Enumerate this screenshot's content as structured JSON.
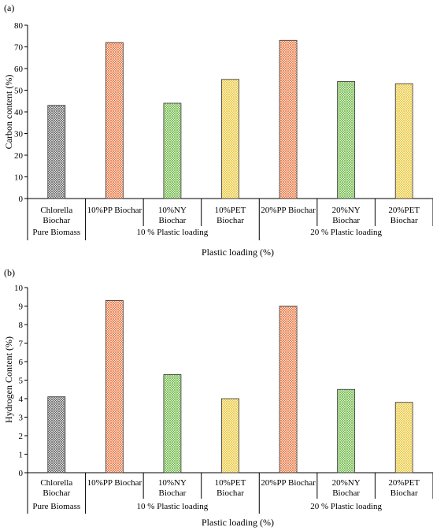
{
  "panels": [
    {
      "panel_label": "(a)",
      "ylabel": "Carbon content (%)",
      "xlabel": "Plastic loading (%)"
    },
    {
      "panel_label": "(b)",
      "ylabel": "Hydrogen Content (%)",
      "xlabel": "Plastic loading (%)"
    }
  ],
  "chart_data": [
    {
      "type": "bar",
      "title": "",
      "xlabel": "Plastic loading (%)",
      "ylabel": "Carbon content (%)",
      "ylim": [
        0,
        80
      ],
      "yticks": [
        0,
        10,
        20,
        30,
        40,
        50,
        60,
        70,
        80
      ],
      "categories": [
        [
          "Chlorella",
          "Biochar"
        ],
        [
          "10%PP Biochar"
        ],
        [
          "10%NY",
          "Biochar"
        ],
        [
          "10%PET",
          "Biochar"
        ],
        [
          "20%PP Biochar"
        ],
        [
          "20%NY",
          "Biochar"
        ],
        [
          "20%PET",
          "Biochar"
        ]
      ],
      "values": [
        43,
        72,
        44,
        55,
        73,
        54,
        53
      ],
      "bar_colors": [
        "#555555",
        "#e8662a",
        "#5cb030",
        "#e8c020",
        "#e8662a",
        "#5cb030",
        "#e8c020"
      ],
      "groups": [
        {
          "label": "Pure Biomass",
          "span": [
            0,
            0
          ]
        },
        {
          "label": "10 % Plastic loading",
          "span": [
            1,
            3
          ]
        },
        {
          "label": "20 % Plastic loading",
          "span": [
            4,
            6
          ]
        }
      ],
      "grid": false,
      "legend": "none"
    },
    {
      "type": "bar",
      "title": "",
      "xlabel": "Plastic loading (%)",
      "ylabel": "Hydrogen Content (%)",
      "ylim": [
        0,
        10
      ],
      "yticks": [
        0,
        1,
        2,
        3,
        4,
        5,
        6,
        7,
        8,
        9,
        10
      ],
      "categories": [
        [
          "Chlorella",
          "Biochar"
        ],
        [
          "10%PP Biochar"
        ],
        [
          "10%NY",
          "Biochar"
        ],
        [
          "10%PET",
          "Biochar"
        ],
        [
          "20%PP Biochar"
        ],
        [
          "20%NY",
          "Biochar"
        ],
        [
          "20%PET",
          "Biochar"
        ]
      ],
      "values": [
        4.1,
        9.3,
        5.3,
        4.0,
        9.0,
        4.5,
        3.8
      ],
      "bar_colors": [
        "#555555",
        "#e8662a",
        "#5cb030",
        "#e8c020",
        "#e8662a",
        "#5cb030",
        "#e8c020"
      ],
      "groups": [
        {
          "label": "Pure Biomass",
          "span": [
            0,
            0
          ]
        },
        {
          "label": "10 % Plastic loading",
          "span": [
            1,
            3
          ]
        },
        {
          "label": "20 % Plastic loading",
          "span": [
            4,
            6
          ]
        }
      ],
      "grid": false,
      "legend": "none"
    }
  ]
}
